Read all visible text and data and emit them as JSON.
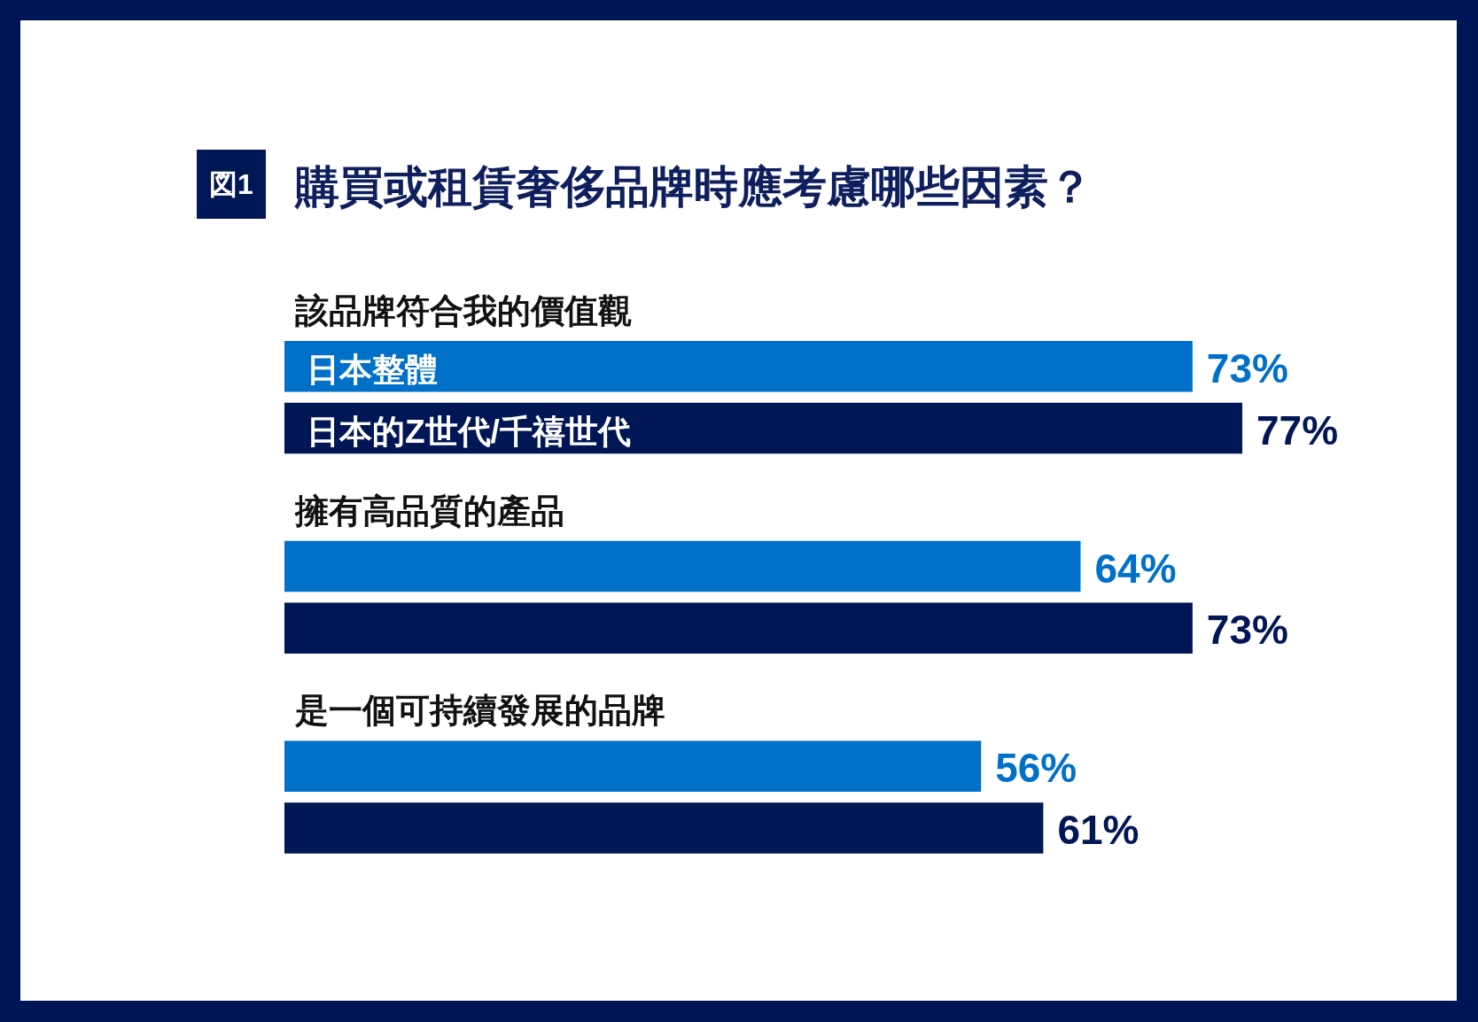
{
  "chart_data": {
    "type": "bar",
    "orientation": "horizontal",
    "title": "購買或租賃奢侈品牌時應考慮哪些因素？",
    "annotations": [
      "図1"
    ],
    "categories": [
      "該品牌符合我的價值觀",
      "擁有高品質的產品",
      "是一個可持續發展的品牌"
    ],
    "series": [
      {
        "name": "日本整體",
        "color": "#0070c9",
        "values": [
          73,
          64,
          56
        ],
        "value_labels": [
          "73%",
          "64%",
          "56%"
        ]
      },
      {
        "name": "日本的Z世代/千禧世代",
        "color": "#001655",
        "values": [
          77,
          73,
          61
        ],
        "value_labels": [
          "77%",
          "73%",
          "61%"
        ]
      }
    ]
  }
}
